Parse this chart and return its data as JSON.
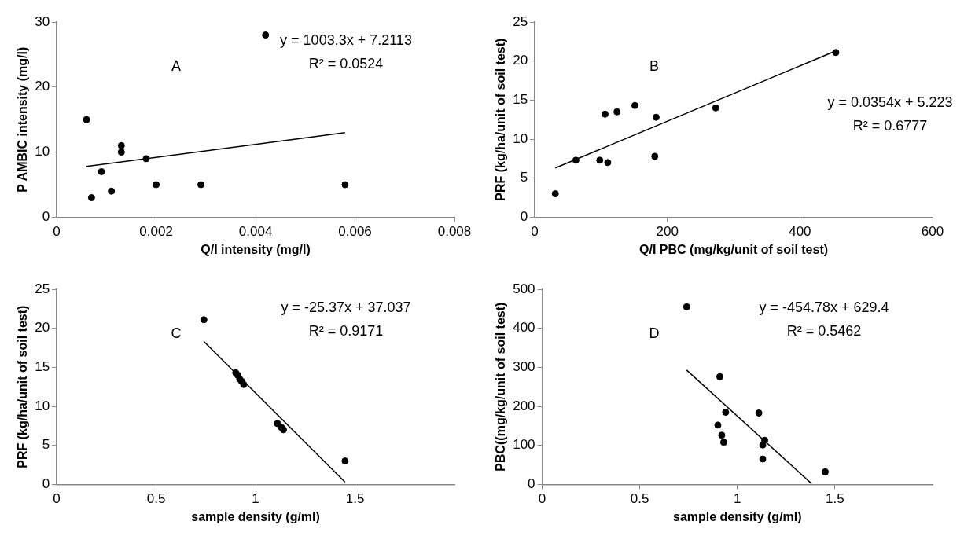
{
  "chart_data": [
    {
      "type": "scatter",
      "xlabel": "Q/I intensity (mg/l)",
      "ylabel": "P AMBIC intensity (mg/l)",
      "annotations": [
        "A",
        "y = 1003.3x + 7.2113",
        "R² = 0.0524"
      ],
      "xlim": [
        0,
        0.008
      ],
      "xticks": [
        0,
        0.002,
        0.004,
        0.006,
        0.008
      ],
      "ylim": [
        0,
        30
      ],
      "yticks": [
        0,
        10,
        20,
        30
      ],
      "legend": false,
      "series": [
        {
          "type": "scatter",
          "marker": "circle",
          "color": "#000000",
          "x": [
            0.0006,
            0.0007,
            0.0009,
            0.0011,
            0.0013,
            0.0013,
            0.0018,
            0.002,
            0.0029,
            0.0042,
            0.0058
          ],
          "values": [
            15,
            3,
            7,
            4,
            11,
            10,
            9,
            5,
            5,
            28,
            5
          ]
        },
        {
          "type": "line",
          "color": "#000000",
          "x": [
            0.0006,
            0.0058
          ],
          "values": [
            7.8,
            13
          ]
        }
      ]
    },
    {
      "type": "scatter",
      "xlabel": "Q/I PBC (mg/kg/unit of soil test)",
      "ylabel": "PRF (kg/ha/unit of soil test)",
      "annotations": [
        "B",
        "y = 0.0354x + 5.223",
        "R² = 0.6777"
      ],
      "xlim": [
        0,
        600
      ],
      "xticks": [
        0,
        200,
        400,
        600
      ],
      "ylim": [
        0,
        25
      ],
      "yticks": [
        0,
        5,
        10,
        15,
        20,
        25
      ],
      "legend": false,
      "series": [
        {
          "type": "scatter",
          "marker": "circle",
          "color": "#000000",
          "x": [
            31,
            62,
            98,
            110,
            106,
            124,
            151,
            181,
            183,
            273,
            454
          ],
          "values": [
            3,
            7.3,
            7.3,
            7,
            13.2,
            13.5,
            14.3,
            7.8,
            12.8,
            14,
            21.1
          ]
        },
        {
          "type": "line",
          "color": "#000000",
          "x": [
            31,
            454
          ],
          "values": [
            6.3,
            21.3
          ]
        }
      ]
    },
    {
      "type": "scatter",
      "xlabel": "sample density (g/ml)",
      "ylabel": "PRF (kg/ha/unit of soil test)",
      "annotations": [
        "C",
        "y = -25.37x + 37.037",
        "R² = 0.9171"
      ],
      "xlim": [
        0,
        2
      ],
      "xticks": [
        0,
        0.5,
        1,
        1.5
      ],
      "ylim": [
        0,
        25
      ],
      "yticks": [
        0,
        5,
        10,
        15,
        20,
        25
      ],
      "legend": false,
      "series": [
        {
          "type": "scatter",
          "marker": "circle",
          "color": "#000000",
          "x": [
            0.74,
            0.9,
            0.91,
            0.92,
            0.93,
            0.94,
            1.11,
            1.13,
            1.14,
            1.45
          ],
          "values": [
            21.1,
            14.3,
            14,
            13.5,
            13.2,
            12.8,
            7.8,
            7.3,
            7,
            3
          ]
        },
        {
          "type": "line",
          "color": "#000000",
          "x": [
            0.74,
            1.45
          ],
          "values": [
            18.3,
            0.3
          ]
        }
      ]
    },
    {
      "type": "scatter",
      "xlabel": "sample density (g/ml)",
      "ylabel": "PBC((mg/kg/unit of soil test)",
      "annotations": [
        "D",
        "y = -454.78x + 629.4",
        "R² = 0.5462"
      ],
      "xlim": [
        0,
        2
      ],
      "xticks": [
        0,
        0.5,
        1,
        1.5
      ],
      "ylim": [
        0,
        500
      ],
      "yticks": [
        0,
        100,
        200,
        300,
        400,
        500
      ],
      "legend": false,
      "series": [
        {
          "type": "scatter",
          "marker": "circle",
          "color": "#000000",
          "x": [
            0.74,
            0.91,
            0.94,
            0.9,
            0.92,
            0.93,
            1.11,
            1.14,
            1.13,
            1.13,
            1.45
          ],
          "values": [
            455,
            276,
            185,
            152,
            126,
            108,
            183,
            113,
            101,
            65,
            32
          ]
        },
        {
          "type": "line",
          "color": "#000000",
          "x": [
            0.74,
            1.38
          ],
          "values": [
            293,
            2
          ]
        }
      ]
    }
  ]
}
